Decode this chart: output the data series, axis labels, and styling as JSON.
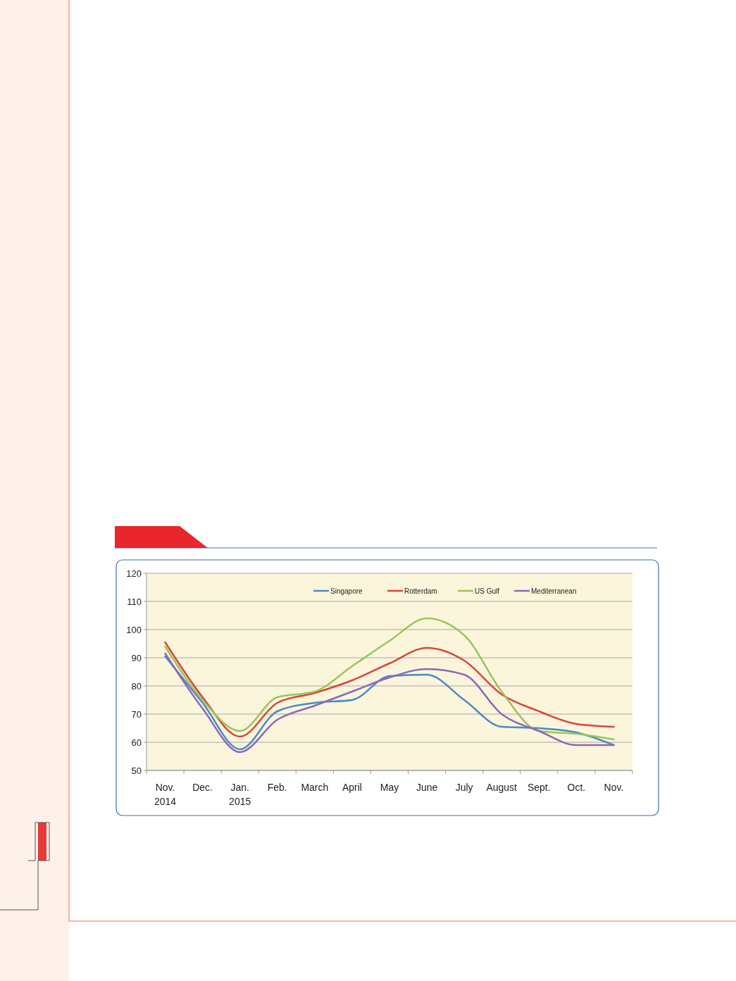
{
  "chart_data": {
    "type": "line",
    "categories": [
      "Nov.\n2014",
      "Dec.",
      "Jan.\n2015",
      "Feb.",
      "March",
      "April",
      "May",
      "June",
      "July",
      "August",
      "Sept.",
      "Oct.",
      "Nov."
    ],
    "series": [
      {
        "name": "Singapore",
        "color": "#4a8ac4",
        "values": [
          90.5,
          74,
          57.5,
          71,
          74,
          75,
          83.5,
          84,
          75,
          65.5,
          65,
          63.5,
          59
        ]
      },
      {
        "name": "Rotterdam",
        "color": "#d9463c",
        "values": [
          95.5,
          76,
          62,
          74,
          77.5,
          82,
          88,
          93.5,
          89,
          77,
          71,
          66.5,
          65.5
        ]
      },
      {
        "name": "US Gulf",
        "color": "#9bc45a",
        "values": [
          94,
          75,
          64,
          76,
          78,
          87,
          96,
          104,
          98,
          78,
          64,
          63,
          61
        ]
      },
      {
        "name": "Mediterranean",
        "color": "#8a68b8",
        "values": [
          91.5,
          72,
          56.5,
          68,
          73,
          78,
          83,
          86,
          84,
          70,
          64,
          59,
          59
        ]
      }
    ],
    "ylim": [
      50,
      120
    ],
    "yticks": [
      50,
      60,
      70,
      80,
      90,
      100,
      110,
      120
    ],
    "grid": "y",
    "legend": "top",
    "marker": "none",
    "line_style": "solid"
  }
}
